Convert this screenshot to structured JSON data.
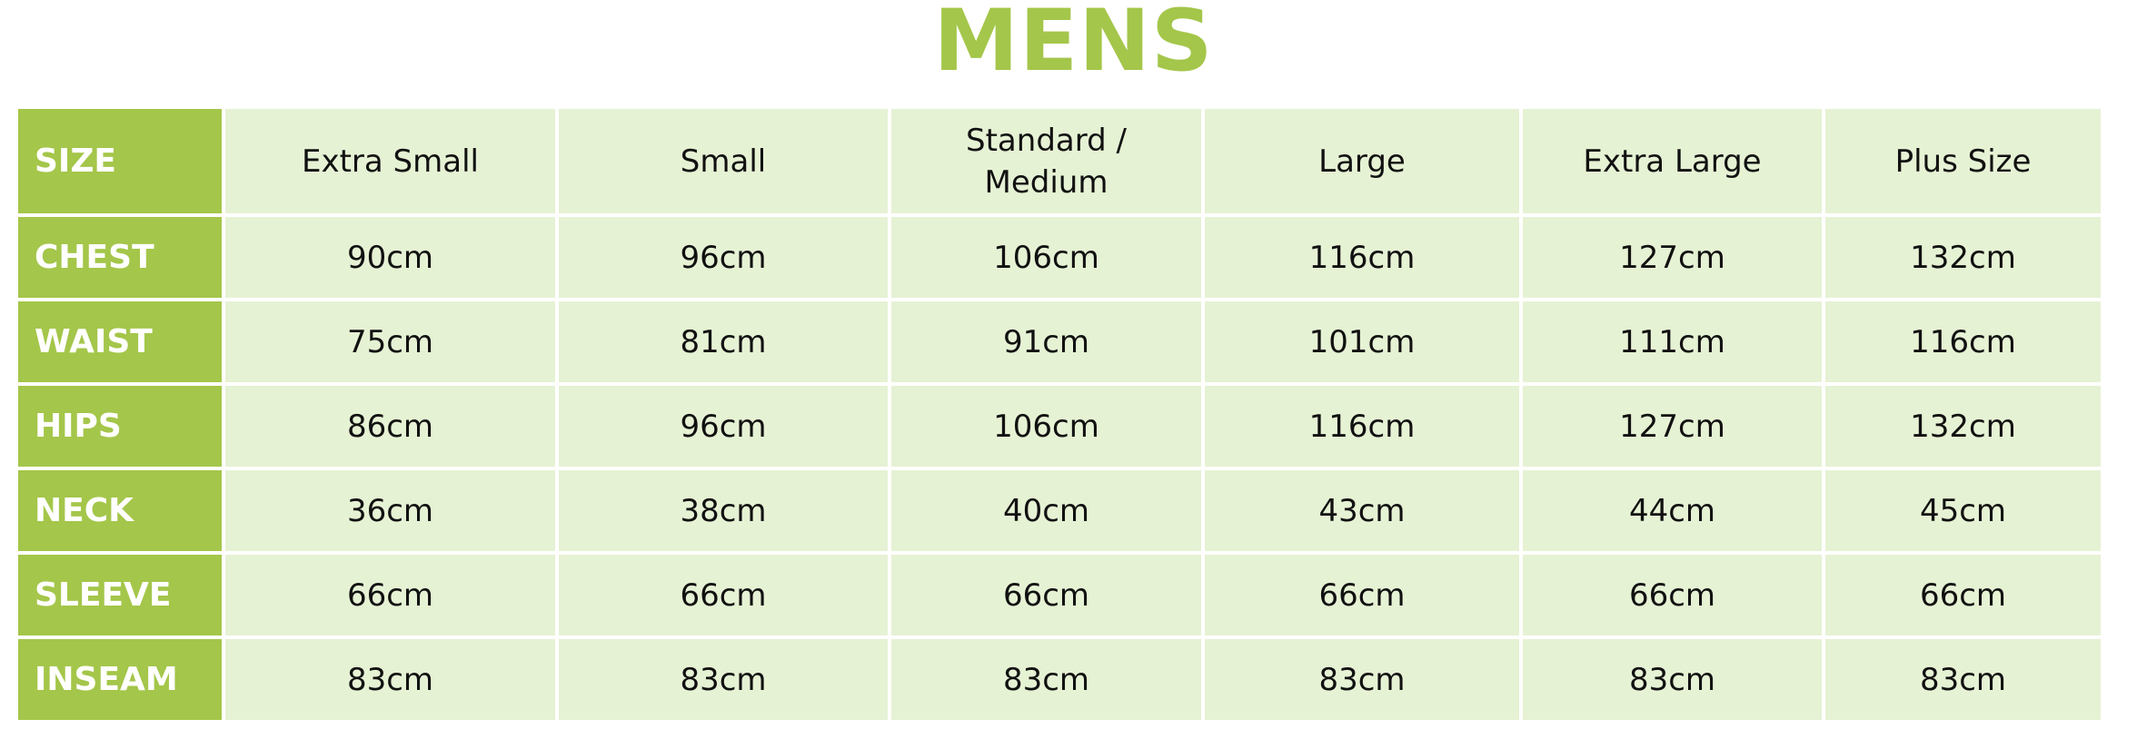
{
  "title": "MENS",
  "colors": {
    "accent": "#a4c64a",
    "cell_bg": "#e6f2d4",
    "label_text": "#ffffff",
    "text": "#111111"
  },
  "table": {
    "header": {
      "label": "SIZE",
      "columns": [
        "Extra Small",
        "Small",
        "Standard / Medium",
        "Large",
        "Extra Large",
        "Plus Size"
      ]
    },
    "rows": [
      {
        "label": "CHEST",
        "values": [
          "90cm",
          "96cm",
          "106cm",
          "116cm",
          "127cm",
          "132cm"
        ]
      },
      {
        "label": "WAIST",
        "values": [
          "75cm",
          "81cm",
          "91cm",
          "101cm",
          "111cm",
          "116cm"
        ]
      },
      {
        "label": "HIPS",
        "values": [
          "86cm",
          "96cm",
          "106cm",
          "116cm",
          "127cm",
          "132cm"
        ]
      },
      {
        "label": "NECK",
        "values": [
          "36cm",
          "38cm",
          "40cm",
          "43cm",
          "44cm",
          "45cm"
        ]
      },
      {
        "label": "SLEEVE",
        "values": [
          "66cm",
          "66cm",
          "66cm",
          "66cm",
          "66cm",
          "66cm"
        ]
      },
      {
        "label": "INSEAM",
        "values": [
          "83cm",
          "83cm",
          "83cm",
          "83cm",
          "83cm",
          "83cm"
        ]
      }
    ]
  }
}
